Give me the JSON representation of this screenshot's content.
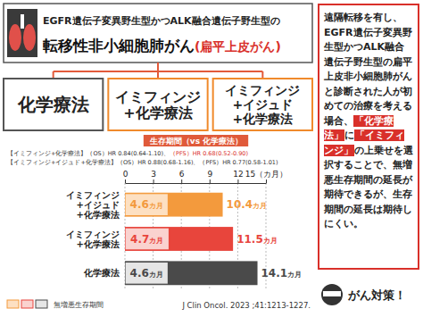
{
  "header": {
    "line1": "EGFR遺伝子変異野生型かつALK融合遺伝子野生型の",
    "line2": "転移性非小細胞肺がん",
    "line2_accent": "(扁平上皮がん)"
  },
  "treatments": [
    "化学療法",
    "イミフィンジ\n+化学療法",
    "イミフィンジ\n+イジュド\n+化学療法"
  ],
  "hazard_ratios": [
    {
      "label": "【イミフィンジ+化学療法】",
      "os": "（OS）HR 0.84(0.64-1.10)、",
      "pfs": "（PFS）HR 0.68(0.52-0.90)"
    },
    {
      "label": "【イミフィンジ+イジュド+化学療法】",
      "os": "（OS）HR 0.88(0.68-1.16)、",
      "pfs": "（PFS）HR 0.77(0.58-1.01)"
    }
  ],
  "chart_data": {
    "type": "bar",
    "orientation": "horizontal",
    "title": "生存期間（vs 化学療法）",
    "categories": [
      "イミフィンジ\n+イジュド\n+化学療法",
      "イミフィンジ\n+化学療法",
      "化学療法"
    ],
    "series": [
      {
        "values": [
          10.4,
          11.5,
          14.1
        ],
        "value_labels": [
          "10.4カ月",
          "11.5カ月",
          "14.1カ月"
        ],
        "colors": [
          "#f39a3d",
          "#e8453c",
          "#4a4a4a"
        ]
      },
      {
        "name": "無増悪生存期間",
        "values": [
          4.6,
          4.7,
          4.6
        ],
        "value_labels": [
          "4.6カ月",
          "4.7カ月",
          "4.6カ月"
        ],
        "colors": [
          "#fde0c2",
          "#fad2cf",
          "#e6e6e6"
        ]
      }
    ],
    "xlim": [
      0,
      15
    ],
    "xticks": [
      0,
      3,
      6,
      9,
      12,
      {
        "value": 15,
        "label": "15（カ月）"
      }
    ],
    "grid": true,
    "data_labels": true,
    "legend": "bottom-left"
  },
  "side_note": {
    "segments": [
      {
        "text": "遠隔転移を有し、EGFR遺伝子変異野生型かつALK融合遺伝子野生型の扁平上皮非小細胞肺がんと診断された人が初めての治療を考える場合、"
      },
      {
        "text": "「化学療法」",
        "highlight": true
      },
      {
        "text": "に"
      },
      {
        "text": "「イミフィンジ」",
        "highlight": true
      },
      {
        "text": "の上乗せを選択することで、無増悪生存期間の延長が期待できるが、生存期間の延長は期待しにくい。"
      }
    ]
  },
  "citation": "J Clin Oncol. 2023 ;41:1213-1227.",
  "footer": "がん対策！"
}
